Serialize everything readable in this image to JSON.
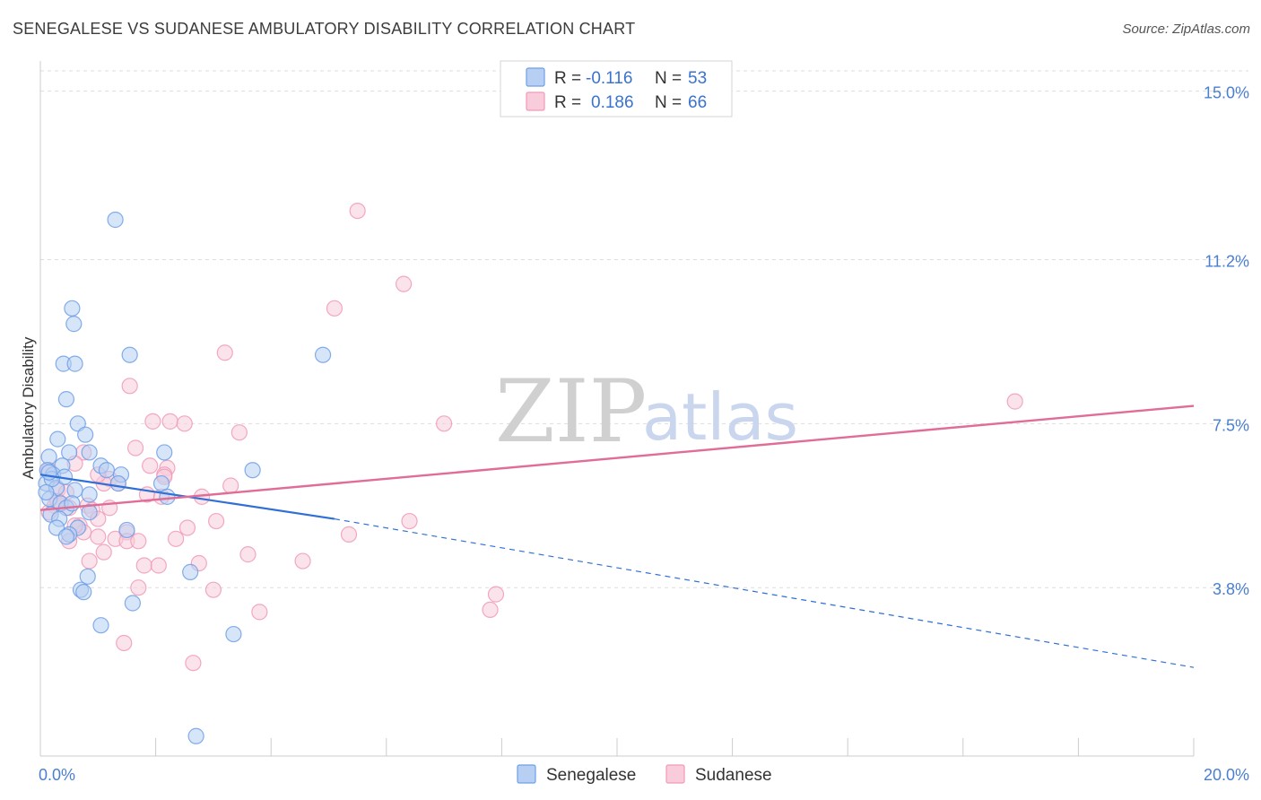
{
  "header": {
    "title": "SENEGALESE VS SUDANESE AMBULATORY DISABILITY CORRELATION CHART",
    "source": "Source: ZipAtlas.com"
  },
  "watermark": {
    "zip": "ZIP",
    "atlas": "atlas"
  },
  "legend": {
    "r_label": "R =",
    "n_label": "N =",
    "rows": [
      {
        "r": "-0.116",
        "n": "53",
        "color": "#7aa6e8"
      },
      {
        "r": "0.186",
        "n": "66",
        "color": "#f0a0bc"
      }
    ]
  },
  "colors": {
    "senegalese": "#6f9fe6",
    "senegalese_fill": "#b7cff3",
    "senegalese_line": "#2f6fd6",
    "sudanese": "#f09ab7",
    "sudanese_fill": "#f8ccdb",
    "sudanese_line": "#e06c97",
    "tick": "#4a7fd0",
    "grid": "#dddddd"
  },
  "chart_data": {
    "type": "scatter",
    "title": "SENEGALESE VS SUDANESE AMBULATORY DISABILITY CORRELATION CHART",
    "xlabel": "",
    "ylabel": "Ambulatory Disability",
    "xlim": [
      0,
      20
    ],
    "ylim": [
      0,
      15.6
    ],
    "x_tick_labels": [
      {
        "value": 0,
        "label": "0.0%"
      },
      {
        "value": 20,
        "label": "20.0%"
      }
    ],
    "y_tick_labels": [
      {
        "value": 3.8,
        "label": "3.8%"
      },
      {
        "value": 7.5,
        "label": "7.5%"
      },
      {
        "value": 11.2,
        "label": "11.2%"
      },
      {
        "value": 15.0,
        "label": "15.0%"
      }
    ],
    "x_minor_ticks": [
      0,
      2,
      4,
      6,
      8,
      10,
      12,
      14,
      16,
      18,
      20
    ],
    "series": [
      {
        "name": "Senegalese",
        "r": -0.116,
        "n": 53,
        "trend": {
          "x0": 0,
          "y0": 6.35,
          "x1": 5.1,
          "y1": 5.35,
          "x_dash_end": 20,
          "y_dash_end": 2.0
        },
        "points": [
          [
            1.3,
            12.1
          ],
          [
            0.55,
            10.1
          ],
          [
            0.58,
            9.75
          ],
          [
            0.4,
            8.85
          ],
          [
            0.6,
            8.85
          ],
          [
            1.55,
            9.05
          ],
          [
            4.9,
            9.05
          ],
          [
            0.45,
            8.05
          ],
          [
            0.65,
            7.5
          ],
          [
            0.3,
            7.15
          ],
          [
            0.78,
            7.25
          ],
          [
            0.15,
            6.75
          ],
          [
            0.5,
            6.85
          ],
          [
            0.38,
            6.55
          ],
          [
            0.85,
            6.85
          ],
          [
            1.05,
            6.55
          ],
          [
            1.15,
            6.45
          ],
          [
            1.4,
            6.35
          ],
          [
            0.12,
            6.45
          ],
          [
            0.22,
            6.35
          ],
          [
            0.1,
            6.15
          ],
          [
            0.28,
            6.05
          ],
          [
            0.6,
            6.0
          ],
          [
            0.85,
            5.9
          ],
          [
            1.35,
            6.15
          ],
          [
            2.15,
            6.85
          ],
          [
            2.1,
            6.15
          ],
          [
            2.2,
            5.85
          ],
          [
            3.68,
            6.45
          ],
          [
            0.16,
            5.8
          ],
          [
            0.35,
            5.7
          ],
          [
            0.45,
            5.6
          ],
          [
            0.18,
            5.45
          ],
          [
            0.33,
            5.35
          ],
          [
            0.65,
            5.15
          ],
          [
            0.28,
            5.15
          ],
          [
            0.5,
            5.0
          ],
          [
            0.45,
            4.95
          ],
          [
            1.5,
            5.1
          ],
          [
            0.85,
            5.5
          ],
          [
            0.82,
            4.05
          ],
          [
            0.7,
            3.75
          ],
          [
            0.75,
            3.7
          ],
          [
            1.6,
            3.45
          ],
          [
            1.05,
            2.95
          ],
          [
            2.6,
            4.15
          ],
          [
            3.35,
            2.75
          ],
          [
            2.7,
            0.45
          ],
          [
            0.42,
            6.3
          ],
          [
            0.2,
            6.25
          ],
          [
            0.15,
            6.4
          ],
          [
            0.1,
            5.95
          ],
          [
            0.55,
            5.7
          ]
        ]
      },
      {
        "name": "Sudanese",
        "r": 0.186,
        "n": 66,
        "trend": {
          "x0": 0,
          "y0": 5.55,
          "x1": 20,
          "y1": 7.9
        },
        "points": [
          [
            5.5,
            12.3
          ],
          [
            6.3,
            10.65
          ],
          [
            5.1,
            10.1
          ],
          [
            3.2,
            9.1
          ],
          [
            1.55,
            8.35
          ],
          [
            16.9,
            8.0
          ],
          [
            1.95,
            7.55
          ],
          [
            2.25,
            7.55
          ],
          [
            2.5,
            7.5
          ],
          [
            7.0,
            7.5
          ],
          [
            3.45,
            7.3
          ],
          [
            1.65,
            6.95
          ],
          [
            0.75,
            6.85
          ],
          [
            0.6,
            6.6
          ],
          [
            1.9,
            6.55
          ],
          [
            2.2,
            6.5
          ],
          [
            0.15,
            6.45
          ],
          [
            1.2,
            6.25
          ],
          [
            1.35,
            6.15
          ],
          [
            1.1,
            6.15
          ],
          [
            2.15,
            6.35
          ],
          [
            1.0,
            6.35
          ],
          [
            3.3,
            6.1
          ],
          [
            0.3,
            6.0
          ],
          [
            1.85,
            5.9
          ],
          [
            2.1,
            5.85
          ],
          [
            2.8,
            5.85
          ],
          [
            0.25,
            5.65
          ],
          [
            0.35,
            5.7
          ],
          [
            0.5,
            5.6
          ],
          [
            0.82,
            5.65
          ],
          [
            1.2,
            5.6
          ],
          [
            0.9,
            5.55
          ],
          [
            0.15,
            5.5
          ],
          [
            3.05,
            5.3
          ],
          [
            6.4,
            5.3
          ],
          [
            1.0,
            5.35
          ],
          [
            0.68,
            5.2
          ],
          [
            2.55,
            5.15
          ],
          [
            1.5,
            5.05
          ],
          [
            0.75,
            5.05
          ],
          [
            5.35,
            5.0
          ],
          [
            1.3,
            4.9
          ],
          [
            1.5,
            4.85
          ],
          [
            1.7,
            4.85
          ],
          [
            2.35,
            4.9
          ],
          [
            0.5,
            4.85
          ],
          [
            1.1,
            4.6
          ],
          [
            3.6,
            4.55
          ],
          [
            0.85,
            4.4
          ],
          [
            4.55,
            4.4
          ],
          [
            2.75,
            4.35
          ],
          [
            1.8,
            4.3
          ],
          [
            2.05,
            4.3
          ],
          [
            1.7,
            3.8
          ],
          [
            3.0,
            3.75
          ],
          [
            7.9,
            3.65
          ],
          [
            3.8,
            3.25
          ],
          [
            7.8,
            3.3
          ],
          [
            1.45,
            2.55
          ],
          [
            2.65,
            2.1
          ],
          [
            0.45,
            5.95
          ],
          [
            0.3,
            5.75
          ],
          [
            1.0,
            4.95
          ],
          [
            2.15,
            6.3
          ],
          [
            0.6,
            5.2
          ]
        ]
      }
    ],
    "legend_position": "top-center"
  },
  "bottom_legend": [
    {
      "label": "Senegalese"
    },
    {
      "label": "Sudanese"
    }
  ]
}
